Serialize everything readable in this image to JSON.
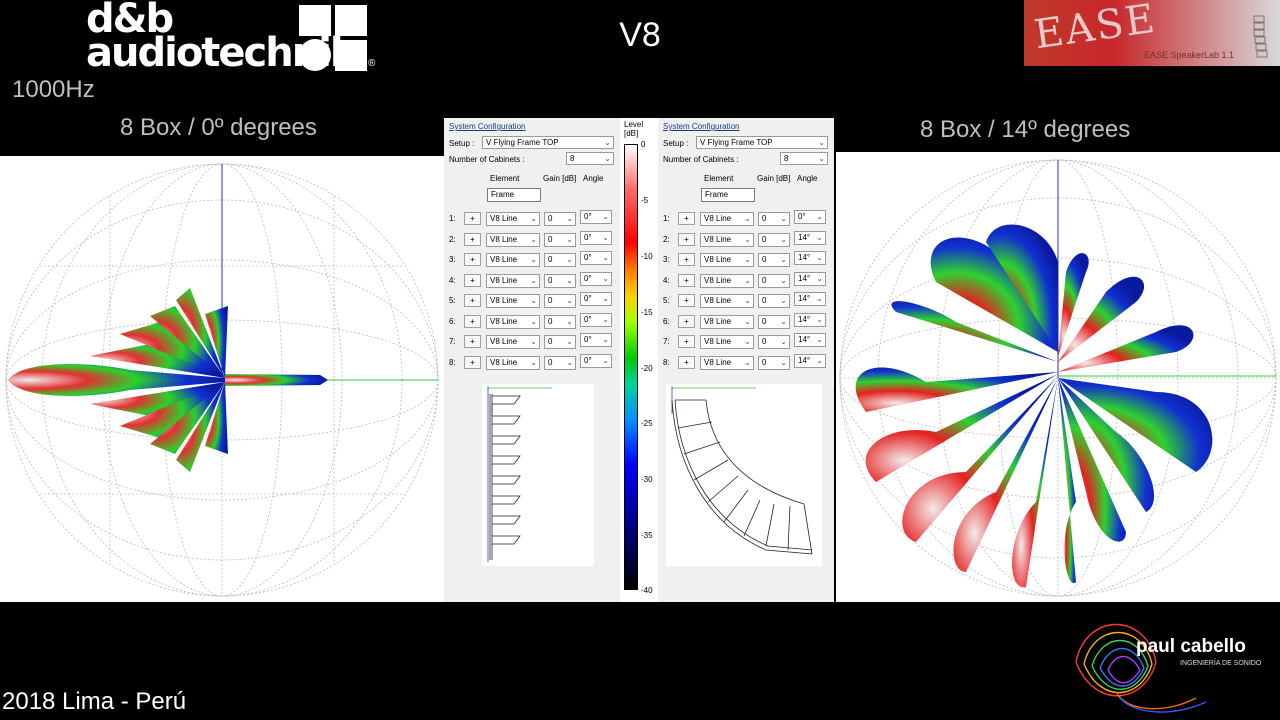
{
  "header": {
    "brand_line1": "d&b",
    "brand_line2": "audiotechnik",
    "reg_mark": "®",
    "frequency": "1000Hz",
    "title": "V8",
    "ease_logo": "EASE",
    "ease_version": "EASE SpeakerLab 1.1"
  },
  "captions": {
    "left": "8 Box  / 0º degrees",
    "right": "8 Box  / 14º degrees"
  },
  "panel_left": {
    "heading": "System Configuration",
    "setup_label": "Setup :",
    "setup_value": "V Flying Frame TOP",
    "count_label": "Number of Cabinets :",
    "count_value": "8",
    "col_element": "Element",
    "col_gain": "Gain [dB]",
    "col_angle": "Angle",
    "frame": "Frame",
    "rows": [
      {
        "num": "1:",
        "plus": "+",
        "element": "V8 Line",
        "gain": "0",
        "angle": "0°"
      },
      {
        "num": "2:",
        "plus": "+",
        "element": "V8 Line",
        "gain": "0",
        "angle": "0°"
      },
      {
        "num": "3:",
        "plus": "+",
        "element": "V8 Line",
        "gain": "0",
        "angle": "0°"
      },
      {
        "num": "4:",
        "plus": "+",
        "element": "V8 Line",
        "gain": "0",
        "angle": "0°"
      },
      {
        "num": "5:",
        "plus": "+",
        "element": "V8 Line",
        "gain": "0",
        "angle": "0°"
      },
      {
        "num": "6:",
        "plus": "+",
        "element": "V8 Line",
        "gain": "0",
        "angle": "0°"
      },
      {
        "num": "7:",
        "plus": "+",
        "element": "V8 Line",
        "gain": "0",
        "angle": "0°"
      },
      {
        "num": "8:",
        "plus": "+",
        "element": "V8 Line",
        "gain": "0",
        "angle": "0°"
      }
    ]
  },
  "panel_right": {
    "heading": "System Configuration",
    "setup_label": "Setup :",
    "setup_value": "V Flying Frame TOP",
    "count_label": "Number of Cabinets :",
    "count_value": "8",
    "col_element": "Element",
    "col_gain": "Gain [dB]",
    "col_angle": "Angle",
    "frame": "Frame",
    "rows": [
      {
        "num": "1:",
        "plus": "+",
        "element": "V8 Line",
        "gain": "0",
        "angle": "0°"
      },
      {
        "num": "2:",
        "plus": "+",
        "element": "V8 Line",
        "gain": "0",
        "angle": "14°"
      },
      {
        "num": "3:",
        "plus": "+",
        "element": "V8 Line",
        "gain": "0",
        "angle": "14°"
      },
      {
        "num": "4:",
        "plus": "+",
        "element": "V8 Line",
        "gain": "0",
        "angle": "14°"
      },
      {
        "num": "5:",
        "plus": "+",
        "element": "V8 Line",
        "gain": "0",
        "angle": "14°"
      },
      {
        "num": "6:",
        "plus": "+",
        "element": "V8 Line",
        "gain": "0",
        "angle": "14°"
      },
      {
        "num": "7:",
        "plus": "+",
        "element": "V8 Line",
        "gain": "0",
        "angle": "14°"
      },
      {
        "num": "8:",
        "plus": "+",
        "element": "V8 Line",
        "gain": "0",
        "angle": "14°"
      }
    ]
  },
  "scale": {
    "title_line1": "Level",
    "title_line2": "[dB]",
    "ticks": [
      "0",
      "-5",
      "-10",
      "-15",
      "-20",
      "-25",
      "-30",
      "-35",
      "-40"
    ]
  },
  "footer": {
    "location": "2018 Lima - Perú",
    "pc_name": "paul cabello",
    "pc_sub": "INGENIERÍA DE SONIDO"
  },
  "colors": {
    "background": "#000000",
    "panel": "#f0f0f0",
    "caption_text": "#bfbfbf",
    "high_level": "#ff0000",
    "mid_level": "#00c800",
    "low_level": "#0000ff"
  },
  "icons": [
    "dropdown-chevron-icon"
  ]
}
